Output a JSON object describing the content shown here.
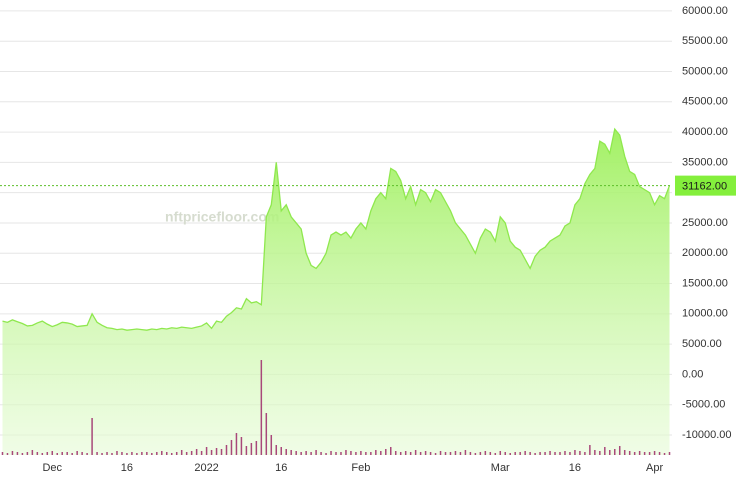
{
  "chart_data": {
    "type": "area",
    "watermark": "nftpricefloor.com",
    "categories": [
      null,
      null,
      null,
      null,
      null,
      null,
      null,
      null,
      null,
      null,
      "Dec",
      null,
      null,
      null,
      null,
      null,
      null,
      null,
      null,
      null,
      null,
      null,
      null,
      null,
      null,
      "16",
      null,
      null,
      null,
      null,
      null,
      null,
      null,
      null,
      null,
      null,
      null,
      null,
      null,
      null,
      null,
      "2022",
      null,
      null,
      null,
      null,
      null,
      null,
      null,
      null,
      null,
      null,
      null,
      null,
      null,
      null,
      "16",
      null,
      null,
      null,
      null,
      null,
      null,
      null,
      null,
      null,
      null,
      null,
      null,
      null,
      null,
      null,
      "Feb",
      null,
      null,
      null,
      null,
      null,
      null,
      null,
      null,
      null,
      null,
      null,
      null,
      null,
      null,
      null,
      null,
      null,
      null,
      null,
      null,
      null,
      null,
      null,
      null,
      null,
      null,
      null,
      "Mar",
      null,
      null,
      null,
      null,
      null,
      null,
      null,
      null,
      null,
      null,
      null,
      null,
      null,
      null,
      "16",
      null,
      null,
      null,
      null,
      null,
      null,
      null,
      null,
      null,
      null,
      null,
      null,
      null,
      null,
      null,
      "Apr",
      null,
      null,
      null
    ],
    "series": [
      {
        "color": "#8fe84e",
        "values": [
          8800,
          8600,
          9000,
          8700,
          8400,
          8000,
          8100,
          8500,
          8800,
          8300,
          7900,
          8200,
          8600,
          8500,
          8300,
          7900,
          8000,
          8100,
          10000,
          8600,
          8100,
          7700,
          7600,
          7400,
          7500,
          7300,
          7400,
          7500,
          7400,
          7300,
          7500,
          7400,
          7600,
          7500,
          7700,
          7600,
          7800,
          7700,
          7600,
          7800,
          8000,
          8500,
          7600,
          8800,
          8600,
          9600,
          10200,
          11000,
          10800,
          12500,
          11800,
          12000,
          11500,
          26000,
          28000,
          35000,
          27000,
          28000,
          26000,
          25000,
          24000,
          20000,
          18000,
          17500,
          18500,
          20000,
          23000,
          23500,
          23000,
          23500,
          22500,
          24000,
          25000,
          24000,
          27000,
          29000,
          30000,
          29000,
          34000,
          33500,
          32000,
          29000,
          31000,
          28000,
          30500,
          30000,
          28500,
          30500,
          30000,
          28500,
          27000,
          25000,
          24000,
          23000,
          21500,
          20000,
          22500,
          24000,
          23500,
          22000,
          26000,
          25000,
          22000,
          21000,
          20500,
          19000,
          17500,
          19500,
          20500,
          21000,
          22000,
          22500,
          23000,
          24500,
          25000,
          28000,
          29000,
          31500,
          33000,
          34000,
          38500,
          38000,
          36500,
          40500,
          39500,
          36000,
          33500,
          33000,
          31000,
          30500,
          30000,
          28000,
          29500,
          29000,
          31162
        ]
      },
      {
        "color": "#a8487a",
        "axis": "y2",
        "values": [
          3,
          2,
          4,
          3,
          2,
          3,
          5,
          3,
          2,
          3,
          4,
          2,
          3,
          3,
          2,
          4,
          3,
          2,
          37,
          3,
          2,
          3,
          2,
          4,
          3,
          2,
          3,
          2,
          3,
          3,
          2,
          3,
          4,
          3,
          2,
          3,
          5,
          3,
          4,
          6,
          4,
          8,
          5,
          7,
          6,
          10,
          15,
          22,
          18,
          9,
          12,
          14,
          95,
          42,
          20,
          10,
          8,
          6,
          5,
          4,
          3,
          4,
          3,
          5,
          3,
          2,
          4,
          3,
          3,
          5,
          4,
          3,
          4,
          3,
          3,
          5,
          4,
          6,
          8,
          4,
          3,
          4,
          3,
          5,
          3,
          4,
          3,
          2,
          4,
          3,
          3,
          4,
          3,
          5,
          3,
          2,
          3,
          4,
          3,
          2,
          4,
          3,
          2,
          3,
          3,
          4,
          3,
          2,
          3,
          3,
          4,
          3,
          3,
          4,
          3,
          5,
          4,
          3,
          10,
          5,
          4,
          8,
          5,
          6,
          9,
          5,
          4,
          3,
          4,
          3,
          3,
          4,
          3,
          2,
          3
        ]
      }
    ],
    "ylim": [
      -13300,
      61800
    ],
    "yticks": [
      {
        "value": 60000,
        "label": "60000.00"
      },
      {
        "value": 55000,
        "label": "55000.00"
      },
      {
        "value": 50000,
        "label": "50000.00"
      },
      {
        "value": 45000,
        "label": "45000.00"
      },
      {
        "value": 40000,
        "label": "40000.00"
      },
      {
        "value": 35000,
        "label": "35000.00"
      },
      {
        "value": 30000,
        "label": "30000.00"
      },
      {
        "value": 25000,
        "label": "25000.00"
      },
      {
        "value": 20000,
        "label": "20000.00"
      },
      {
        "value": 15000,
        "label": "15000.00"
      },
      {
        "value": 10000,
        "label": "10000.00"
      },
      {
        "value": 5000,
        "label": "5000.00"
      },
      {
        "value": 0,
        "label": "0.00"
      },
      {
        "value": -5000,
        "label": "-5000.00"
      },
      {
        "value": -10000,
        "label": "-10000.00"
      }
    ],
    "y2lim": [
      0,
      100
    ],
    "grid": true,
    "price_marker": {
      "value": 31162,
      "label": "31162.00",
      "color": "#84ef3c"
    }
  }
}
